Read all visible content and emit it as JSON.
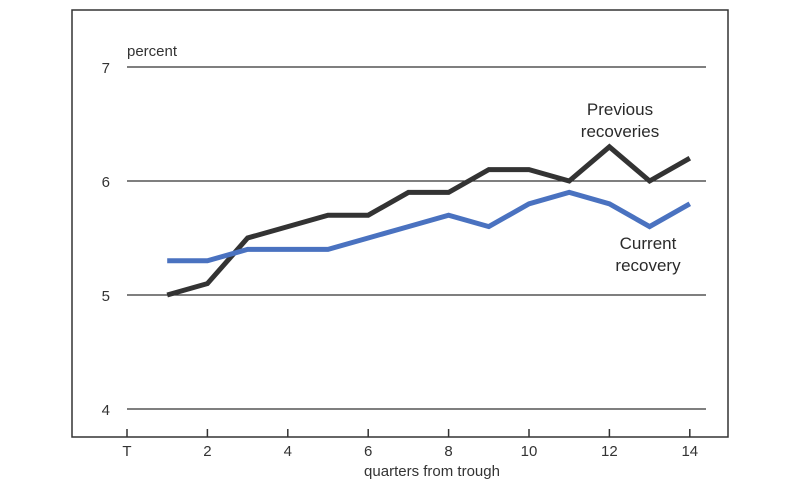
{
  "chart_data": {
    "type": "line",
    "title": "",
    "ylabel": "percent",
    "xlabel": "quarters from trough",
    "ylim": [
      4,
      7.5
    ],
    "xlim": [
      0,
      14
    ],
    "y_ticks": [
      4,
      5,
      6,
      7
    ],
    "x_ticks": [
      {
        "value": 0,
        "label": "T"
      },
      {
        "value": 2,
        "label": "2"
      },
      {
        "value": 4,
        "label": "4"
      },
      {
        "value": 6,
        "label": "6"
      },
      {
        "value": 8,
        "label": "8"
      },
      {
        "value": 10,
        "label": "10"
      },
      {
        "value": 12,
        "label": "12"
      },
      {
        "value": 14,
        "label": "14"
      }
    ],
    "grid": "horizontal",
    "series": [
      {
        "name": "Previous recoveries",
        "label_lines": [
          "Previous",
          "recoveries"
        ],
        "color": "#333333",
        "x": [
          1,
          2,
          3,
          4,
          5,
          6,
          7,
          8,
          9,
          10,
          11,
          12,
          13,
          14
        ],
        "values": [
          5.0,
          5.1,
          5.5,
          5.6,
          5.7,
          5.7,
          5.9,
          5.9,
          6.1,
          6.1,
          6.0,
          6.3,
          6.0,
          6.2
        ]
      },
      {
        "name": "Current recovery",
        "label_lines": [
          "Current",
          "recovery"
        ],
        "color": "#4a72c0",
        "x": [
          1,
          2,
          3,
          4,
          5,
          6,
          7,
          8,
          9,
          10,
          11,
          12,
          13,
          14
        ],
        "values": [
          5.3,
          5.3,
          5.4,
          5.4,
          5.4,
          5.5,
          5.6,
          5.7,
          5.6,
          5.8,
          5.9,
          5.8,
          5.6,
          5.8
        ]
      }
    ]
  }
}
